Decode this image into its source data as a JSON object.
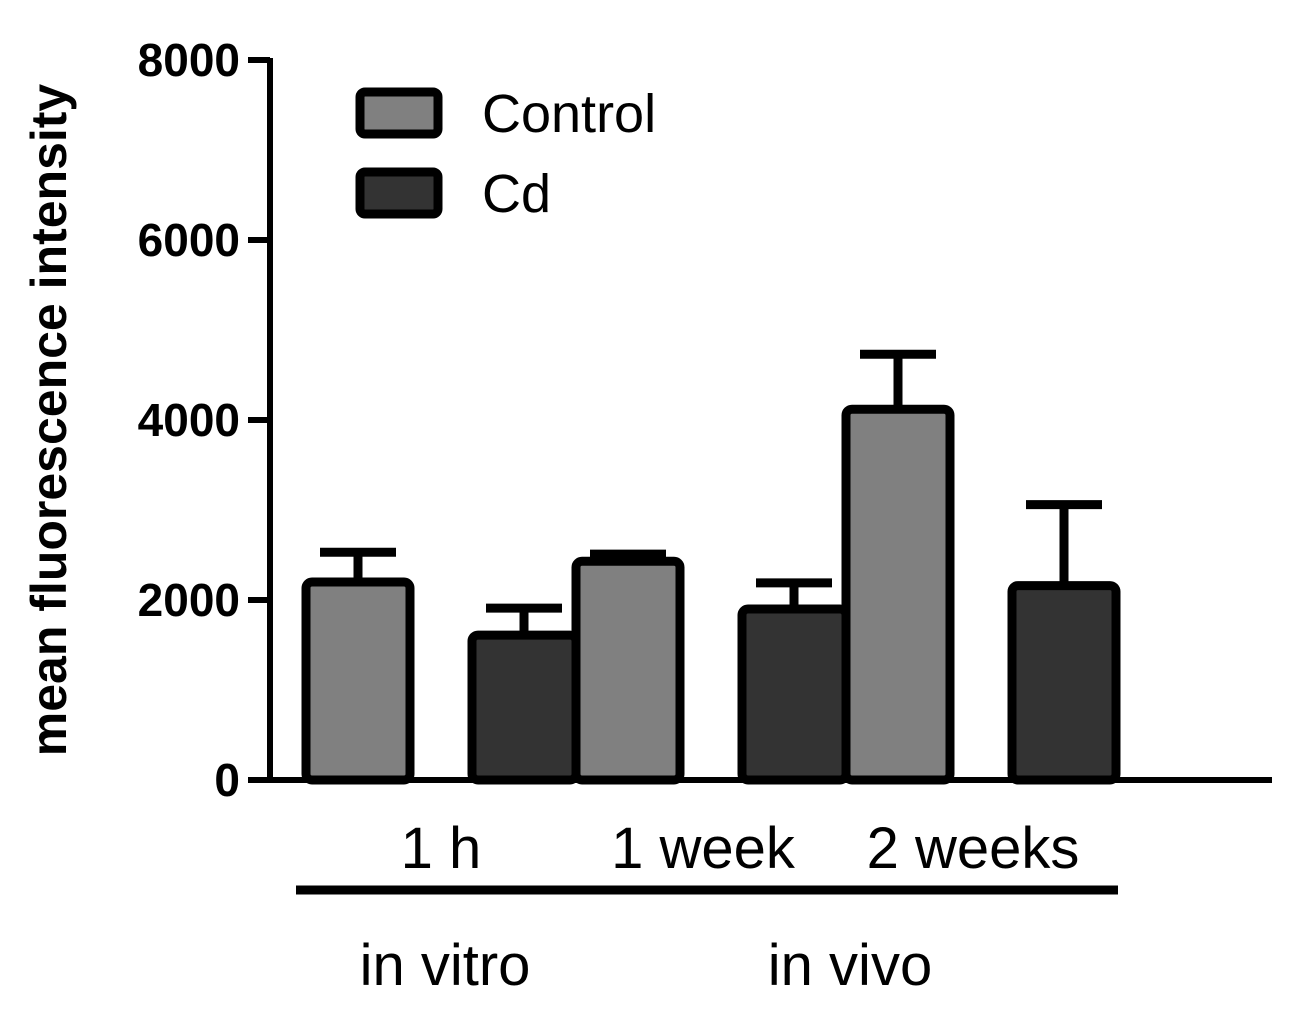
{
  "chart_data": {
    "type": "bar",
    "title": "",
    "xlabel": "",
    "ylabel": "mean fluorescence intensity",
    "ylim": [
      0,
      8000
    ],
    "yticks": [
      0,
      2000,
      4000,
      6000,
      8000
    ],
    "ytick_labels": [
      "0",
      "2000",
      "4000",
      "6000",
      "8000"
    ],
    "categories": [
      "1 h",
      "1 week",
      "2 weeks"
    ],
    "groups": [
      {
        "label": "in vitro",
        "categories": [
          "1 h"
        ]
      },
      {
        "label": "in vivo",
        "categories": [
          "1 week",
          "2 weeks"
        ]
      }
    ],
    "series": [
      {
        "name": "Control",
        "color": "#808080",
        "values": [
          2200,
          2430,
          4120
        ],
        "errors": [
          330,
          80,
          610
        ]
      },
      {
        "name": "Cd",
        "color": "#333333",
        "values": [
          1610,
          1900,
          2160
        ],
        "errors": [
          300,
          290,
          900
        ]
      }
    ],
    "legend_position": "top-left",
    "grid": false
  }
}
